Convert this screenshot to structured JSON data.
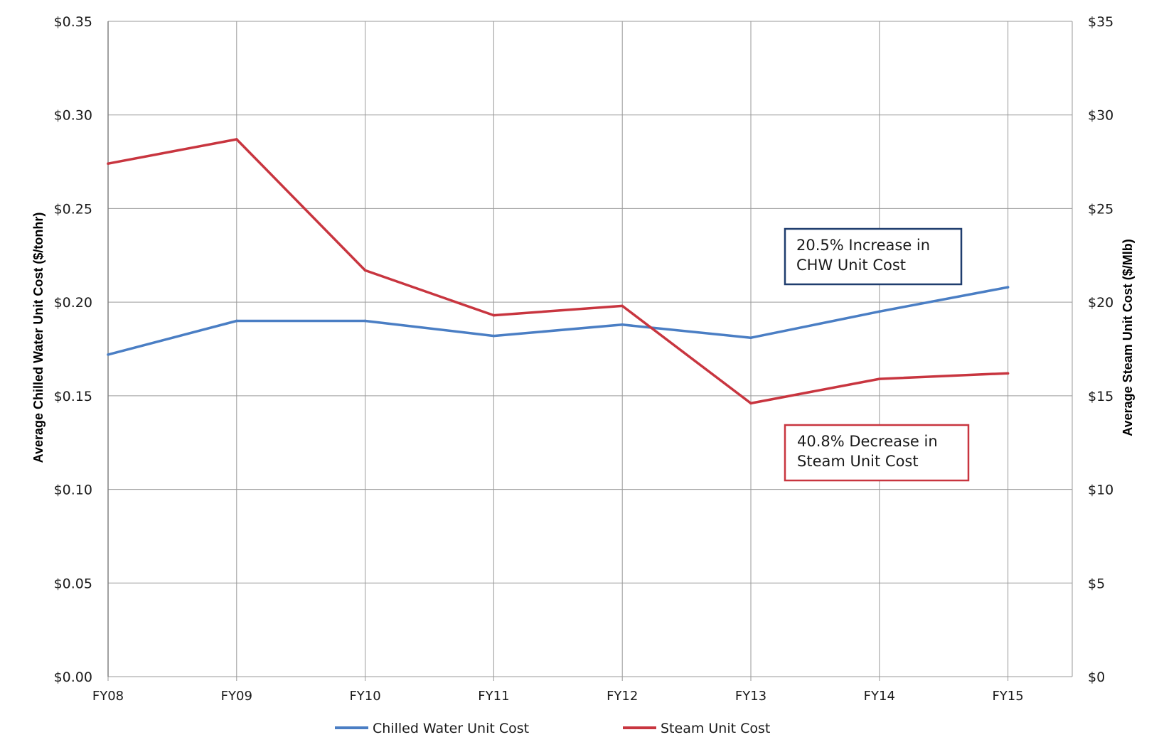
{
  "chart_data": {
    "type": "line",
    "categories": [
      "FY08",
      "FY09",
      "FY10",
      "FY11",
      "FY12",
      "FY13",
      "FY14",
      "FY15"
    ],
    "series": [
      {
        "name": "Chilled Water Unit Cost",
        "axis": "left",
        "color": "#4a7ec4",
        "values": [
          0.172,
          0.19,
          0.19,
          0.182,
          0.188,
          0.181,
          0.195,
          0.208
        ]
      },
      {
        "name": "Steam Unit Cost",
        "axis": "right",
        "color": "#c8353f",
        "values": [
          27.4,
          28.7,
          21.7,
          19.3,
          19.8,
          14.6,
          15.9,
          16.2
        ]
      }
    ],
    "y_left": {
      "label": "Average Chilled Water Unit Cost ($/tonhr)",
      "range": [
        0,
        0.35
      ],
      "ticks": [
        "$0.00",
        "$0.05",
        "$0.10",
        "$0.15",
        "$0.20",
        "$0.25",
        "$0.30",
        "$0.35"
      ]
    },
    "y_right": {
      "label": "Average Steam Unit Cost ($/Mlb)",
      "range": [
        0,
        35
      ],
      "ticks": [
        "$0",
        "$5",
        "$10",
        "$15",
        "$20",
        "$25",
        "$30",
        "$35"
      ]
    },
    "grid": true,
    "legend": "bottom",
    "annotations": [
      {
        "lines": [
          "20.5% Increase in",
          "CHW Unit Cost"
        ],
        "border_color": "#1f3d6e"
      },
      {
        "lines": [
          "40.8% Decrease in",
          "Steam Unit Cost"
        ],
        "border_color": "#c8353f"
      }
    ]
  }
}
